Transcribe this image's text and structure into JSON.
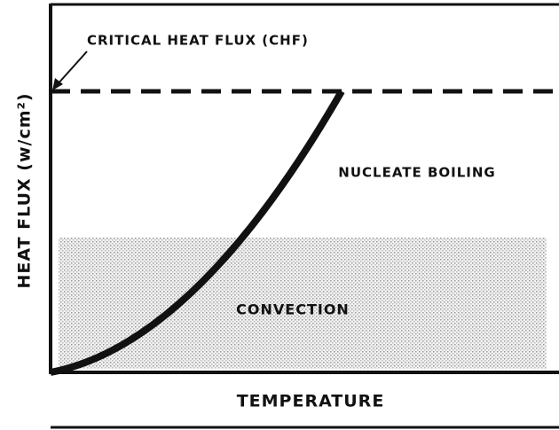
{
  "diagram": {
    "chf_label": "CRITICAL HEAT FLUX (CHF)",
    "nucleate_label": "NUCLEATE BOILING",
    "convection_label": "CONVECTION",
    "x_axis_label": "TEMPERATURE",
    "y_axis_label": "HEAT FLUX (w/cm²)"
  }
}
